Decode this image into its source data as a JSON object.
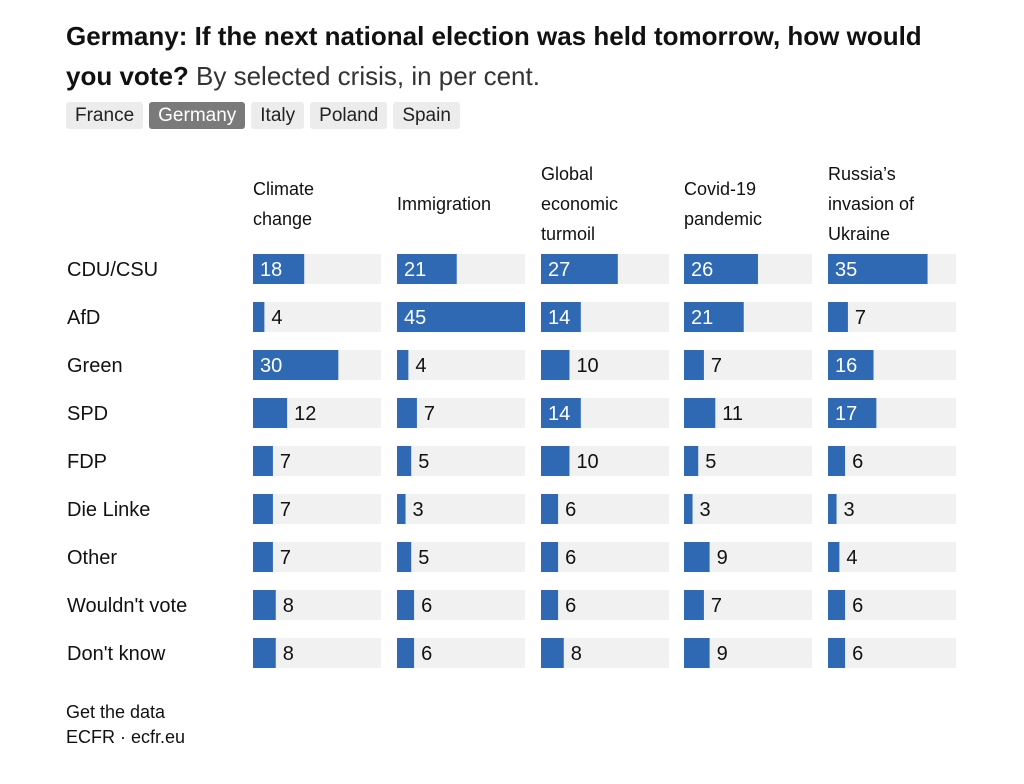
{
  "title": {
    "bold": "Germany: If the next national election was held tomorrow, how would you vote?",
    "subtitle": "By selected crisis, in per cent."
  },
  "tabs": [
    {
      "label": "France",
      "active": false
    },
    {
      "label": "Germany",
      "active": true
    },
    {
      "label": "Italy",
      "active": false
    },
    {
      "label": "Poland",
      "active": false
    },
    {
      "label": "Spain",
      "active": false
    }
  ],
  "colors": {
    "bar": "#2f69b3",
    "track": "#f1f1f1",
    "label_inside": "#ffffff",
    "label_outside": "#111111"
  },
  "chart_data": {
    "type": "bar",
    "orientation": "horizontal",
    "categories": [
      "CDU/CSU",
      "AfD",
      "Green",
      "SPD",
      "FDP",
      "Die Linke",
      "Other",
      "Wouldn't vote",
      "Don't know"
    ],
    "xlim": [
      0,
      45
    ],
    "series": [
      {
        "name": [
          "Climate",
          "change"
        ],
        "values": [
          18,
          4,
          30,
          12,
          7,
          7,
          7,
          8,
          8
        ]
      },
      {
        "name": [
          "Immigration"
        ],
        "values": [
          21,
          45,
          4,
          7,
          5,
          3,
          5,
          6,
          6
        ]
      },
      {
        "name": [
          "Global",
          "economic",
          "turmoil"
        ],
        "values": [
          27,
          14,
          10,
          14,
          10,
          6,
          6,
          6,
          8
        ]
      },
      {
        "name": [
          "Covid-19",
          "pandemic"
        ],
        "values": [
          26,
          21,
          7,
          11,
          5,
          3,
          9,
          7,
          9
        ]
      },
      {
        "name": [
          "Russia’s",
          "invasion of",
          "Ukraine"
        ],
        "values": [
          35,
          7,
          16,
          17,
          6,
          3,
          4,
          6,
          6
        ]
      }
    ]
  },
  "footer": {
    "get_data": "Get the data",
    "source": "ECFR · ecfr.eu"
  }
}
